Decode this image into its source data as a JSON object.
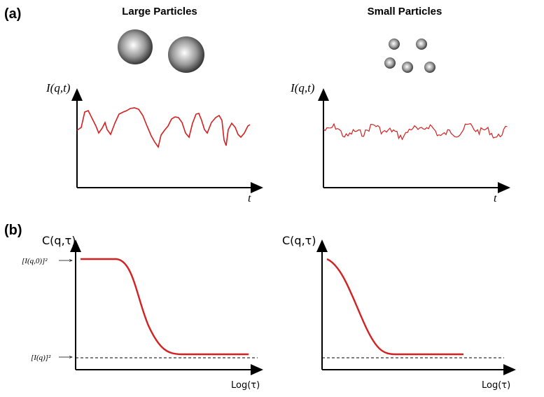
{
  "panel_a": {
    "label": "(a)",
    "large": {
      "title": "Large Particles",
      "y_label": "I(q,t)",
      "x_label": "t"
    },
    "small": {
      "title": "Small Particles",
      "y_label": "I(q,t)",
      "x_label": "t"
    }
  },
  "panel_b": {
    "label": "(b)",
    "large": {
      "y_label": "C(q,τ)",
      "x_label": "Log(τ)",
      "y_mark_top": "[I(q,0)]²",
      "y_mark_bottom": "[I(q)]²"
    },
    "small": {
      "y_label": "C(q,τ)",
      "x_label": "Log(τ)"
    }
  }
}
